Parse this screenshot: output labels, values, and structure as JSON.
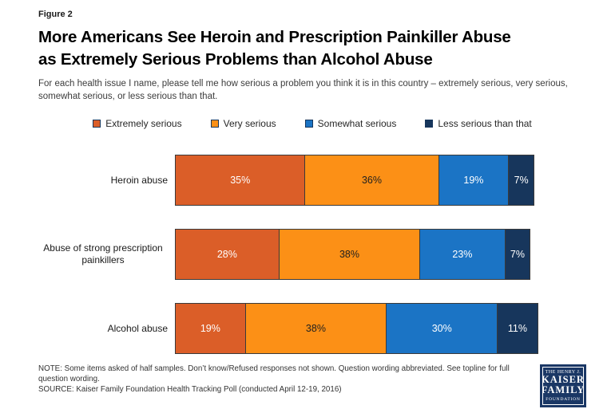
{
  "figure_label": "Figure 2",
  "title_line1": "More Americans See Heroin and Prescription Painkiller Abuse",
  "title_line2": "as Extremely Serious Problems than Alcohol Abuse",
  "subtitle": "For each health issue I name, please tell me how serious a problem you think it is in this country – extremely serious, very serious, somewhat serious, or less serious than that.",
  "chart_data": {
    "type": "bar",
    "orientation": "horizontal",
    "stacked": true,
    "x_range": [
      0,
      100
    ],
    "unit": "%",
    "grid": false,
    "legend_position": "top",
    "categories": [
      "Heroin abuse",
      "Abuse of strong prescription painkillers",
      "Alcohol abuse"
    ],
    "series": [
      {
        "name": "Extremely serious",
        "color": "#DB5E28",
        "label_color": "#FFFFFF",
        "values": [
          35,
          28,
          19
        ]
      },
      {
        "name": "Very serious",
        "color": "#FC9016",
        "label_color": "#1F1F1F",
        "values": [
          36,
          38,
          38
        ]
      },
      {
        "name": "Somewhat serious",
        "color": "#1B74C5",
        "label_color": "#FFFFFF",
        "values": [
          19,
          23,
          30
        ]
      },
      {
        "name": "Less serious than that",
        "color": "#17365C",
        "label_color": "#FFFFFF",
        "values": [
          7,
          7,
          11
        ]
      }
    ]
  },
  "note": "NOTE: Some items asked of half samples. Don’t know/Refused responses not shown. Question wording abbreviated. See topline for full question wording.",
  "source": "SOURCE: Kaiser Family Foundation Health Tracking Poll (conducted April 12-19, 2016)",
  "logo": {
    "line1": "THE HENRY J.",
    "line2": "KAISER",
    "line3": "FAMILY",
    "line4": "FOUNDATION",
    "bg_color": "#1A3765"
  }
}
